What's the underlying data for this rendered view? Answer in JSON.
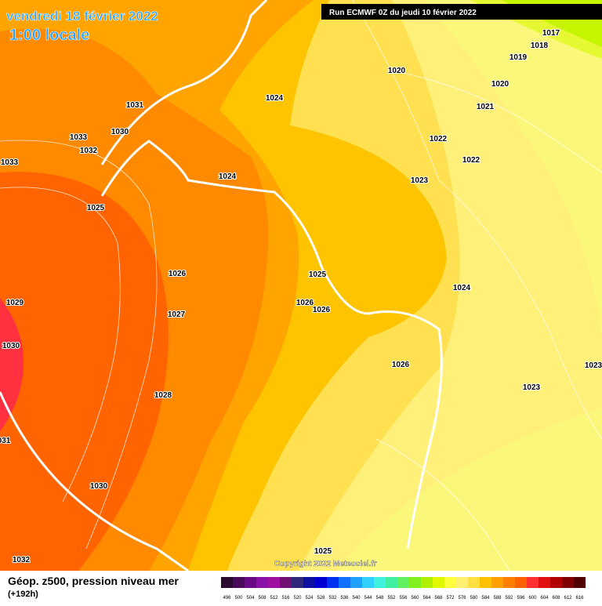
{
  "header": {
    "title": "vendredi 18 février 2022",
    "subtitle": "1:00 locale",
    "run": "Run ECMWF 0Z du jeudi 10 février 2022"
  },
  "isobar_labels": [
    "1017",
    "1018",
    "1019",
    "1020",
    "1020",
    "1021",
    "1024",
    "1031",
    "1030",
    "1033",
    "1032",
    "1033",
    "1024",
    "1022",
    "1022",
    "1023",
    "1025",
    "1026",
    "1025",
    "1024",
    "1026",
    "1026",
    "1029",
    "1027",
    "1030",
    "1026",
    "1023",
    "1023",
    "1028",
    "031",
    "1030",
    "1032",
    "1025"
  ],
  "copyright": "Copyright 2022 Meteociel.fr",
  "caption": {
    "title": "Géop. z500, pression niveau mer",
    "lead": "(+192h)"
  },
  "legend": [
    {
      "label": 496,
      "color": "#2a0a2e"
    },
    {
      "label": 500,
      "color": "#4a0a5a"
    },
    {
      "label": 504,
      "color": "#6a0a84"
    },
    {
      "label": 508,
      "color": "#8a10a8"
    },
    {
      "label": 512,
      "color": "#a010a0"
    },
    {
      "label": 516,
      "color": "#701070"
    },
    {
      "label": 520,
      "color": "#302878"
    },
    {
      "label": 524,
      "color": "#1010a0"
    },
    {
      "label": 528,
      "color": "#0000d0"
    },
    {
      "label": 532,
      "color": "#0030f0"
    },
    {
      "label": 536,
      "color": "#1070ff"
    },
    {
      "label": 540,
      "color": "#20a0ff"
    },
    {
      "label": 544,
      "color": "#30d0ff"
    },
    {
      "label": 548,
      "color": "#40f0e0"
    },
    {
      "label": 552,
      "color": "#40f0a0"
    },
    {
      "label": 556,
      "color": "#60f060"
    },
    {
      "label": 560,
      "color": "#80f020"
    },
    {
      "label": 564,
      "color": "#b0f000"
    },
    {
      "label": 568,
      "color": "#e0f800"
    },
    {
      "label": 572,
      "color": "#ffff40"
    },
    {
      "label": 576,
      "color": "#fff070"
    },
    {
      "label": 580,
      "color": "#ffe040"
    },
    {
      "label": 584,
      "color": "#ffc000"
    },
    {
      "label": 588,
      "color": "#ffa000"
    },
    {
      "label": 592,
      "color": "#ff8000"
    },
    {
      "label": 596,
      "color": "#ff6000"
    },
    {
      "label": 600,
      "color": "#ff3030"
    },
    {
      "label": 604,
      "color": "#e01010"
    },
    {
      "label": 608,
      "color": "#b00000"
    },
    {
      "label": 612,
      "color": "#800000"
    },
    {
      "label": 616,
      "color": "#500000"
    }
  ]
}
